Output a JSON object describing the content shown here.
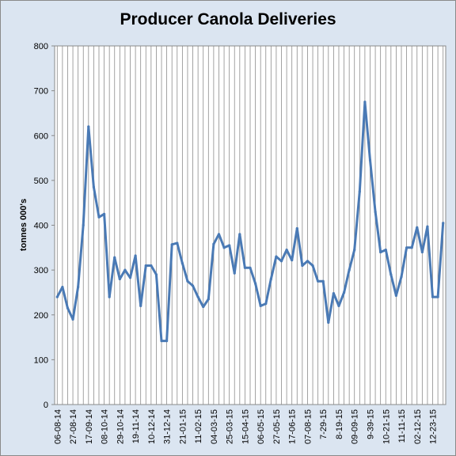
{
  "chart_data": {
    "type": "line",
    "title": "Producer Canola Deliveries",
    "xlabel": "",
    "ylabel": "tonnes 000's",
    "ylim": [
      0,
      800
    ],
    "y_ticks": [
      0,
      100,
      200,
      300,
      400,
      500,
      600,
      700,
      800
    ],
    "grid": "vertical lines at each x point",
    "x_tick_labels": [
      "06-08-14",
      "27-08-14",
      "17-09-14",
      "08-10-14",
      "29-10-14",
      "19-11-14",
      "10-12-14",
      "31-12-14",
      "21-01-15",
      "11-02-15",
      "04-03-15",
      "25-03-15",
      "15-04-15",
      "06-05-15",
      "27-05-15",
      "17-06-15",
      "07-08-15",
      "7-29-15",
      "8-19-15",
      "09-09-15",
      "9-39-15",
      "10-21-15",
      "11-11-15",
      "02-12-15",
      "12-23-15"
    ],
    "series": [
      {
        "color": "#4a7ab5",
        "values": [
          240,
          262,
          215,
          190,
          262,
          400,
          620,
          485,
          418,
          425,
          240,
          328,
          280,
          300,
          283,
          332,
          220,
          310,
          310,
          290,
          142,
          142,
          357,
          360,
          315,
          275,
          265,
          240,
          218,
          235,
          358,
          380,
          350,
          355,
          293,
          380,
          305,
          305,
          270,
          220,
          225,
          280,
          330,
          320,
          345,
          322,
          393,
          310,
          320,
          310,
          275,
          275,
          183,
          248,
          220,
          250,
          300,
          345,
          475,
          675,
          545,
          430,
          340,
          345,
          290,
          243,
          285,
          350,
          350,
          395,
          340,
          397,
          240,
          240,
          405
        ]
      }
    ]
  }
}
